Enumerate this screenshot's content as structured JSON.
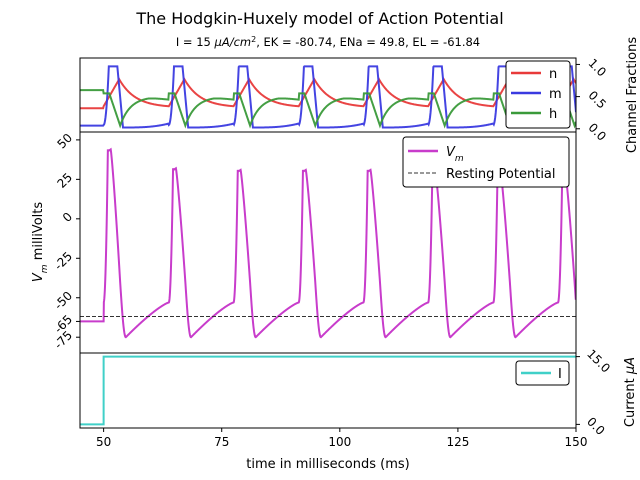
{
  "figure": {
    "title": "The Hodgkin-Huxely model of Action Potential",
    "subtitle_prefix": "I = 15 ",
    "subtitle_unit_base": "μA/cm",
    "subtitle_unit_exp": "2",
    "subtitle_suffix": ", EK = -80.74, ENa = 49.8, EL = -61.84"
  },
  "chart_data": [
    {
      "id": "gates",
      "type": "line",
      "title": "",
      "xlabel": "",
      "ylabel": "Channel Fractions",
      "xlim": [
        45,
        150
      ],
      "ylim": [
        -0.05,
        1.1
      ],
      "yticks": [
        "0.0",
        "0.5",
        "1.0"
      ],
      "ytick_values": [
        0.0,
        0.5,
        1.0
      ],
      "legend": "upper right",
      "spike_times": [
        51.5,
        65.3,
        79.0,
        92.8,
        106.5,
        120.2,
        134.0,
        147.7
      ],
      "series": [
        {
          "name": "n",
          "color": "#e83a3a",
          "rest": 0.32,
          "peak": 0.77,
          "after_spike": 0.77,
          "trough": 0.33
        },
        {
          "name": "m",
          "color": "#3a3ae0",
          "rest": 0.05,
          "peak": 1.0,
          "after_spike": 0.0,
          "trough": 0.02
        },
        {
          "name": "h",
          "color": "#3a9a3a",
          "rest": 0.6,
          "peak": 0.6,
          "after_spike": 0.05,
          "trough": 0.45
        }
      ]
    },
    {
      "id": "voltage",
      "type": "line",
      "title": "",
      "xlabel": "",
      "ylabel": "V_m milliVolts",
      "xlim": [
        45,
        150
      ],
      "ylim": [
        -85,
        55
      ],
      "yticks": [
        "50",
        "25",
        "0",
        "-25",
        "-50",
        "-65",
        "-75"
      ],
      "ytick_values": [
        50,
        25,
        0,
        -25,
        -50,
        -65,
        -75
      ],
      "legend": "upper right",
      "resting_potential": -61.84,
      "baseline_before_stimulus": -65,
      "stimulus_onset": 50,
      "spike_times": [
        51.5,
        65.3,
        79.0,
        92.8,
        106.5,
        120.2,
        134.0,
        147.7
      ],
      "spike_peaks": [
        44,
        32,
        31,
        31,
        31,
        31,
        31,
        31
      ],
      "undershoot": -75,
      "series": [
        {
          "name": "V_m",
          "color": "#c83ccb",
          "style": "solid"
        },
        {
          "name": "Resting Potential",
          "color": "#333333",
          "style": "dashed"
        }
      ]
    },
    {
      "id": "current",
      "type": "line",
      "title": "",
      "xlabel": "time in milliseconds (ms)",
      "ylabel": "Current μA",
      "xlim": [
        45,
        150
      ],
      "ylim": [
        -0.8,
        15.8
      ],
      "xticks": [
        "50",
        "75",
        "100",
        "125",
        "150"
      ],
      "xtick_values": [
        50,
        75,
        100,
        125,
        150
      ],
      "yticks": [
        "0.0",
        "15.0"
      ],
      "ytick_values": [
        0,
        15
      ],
      "legend": "upper right",
      "series": [
        {
          "name": "I",
          "color": "#40d0c8",
          "x": [
            45,
            50,
            50,
            150
          ],
          "values": [
            0,
            0,
            15,
            15
          ]
        }
      ]
    }
  ]
}
